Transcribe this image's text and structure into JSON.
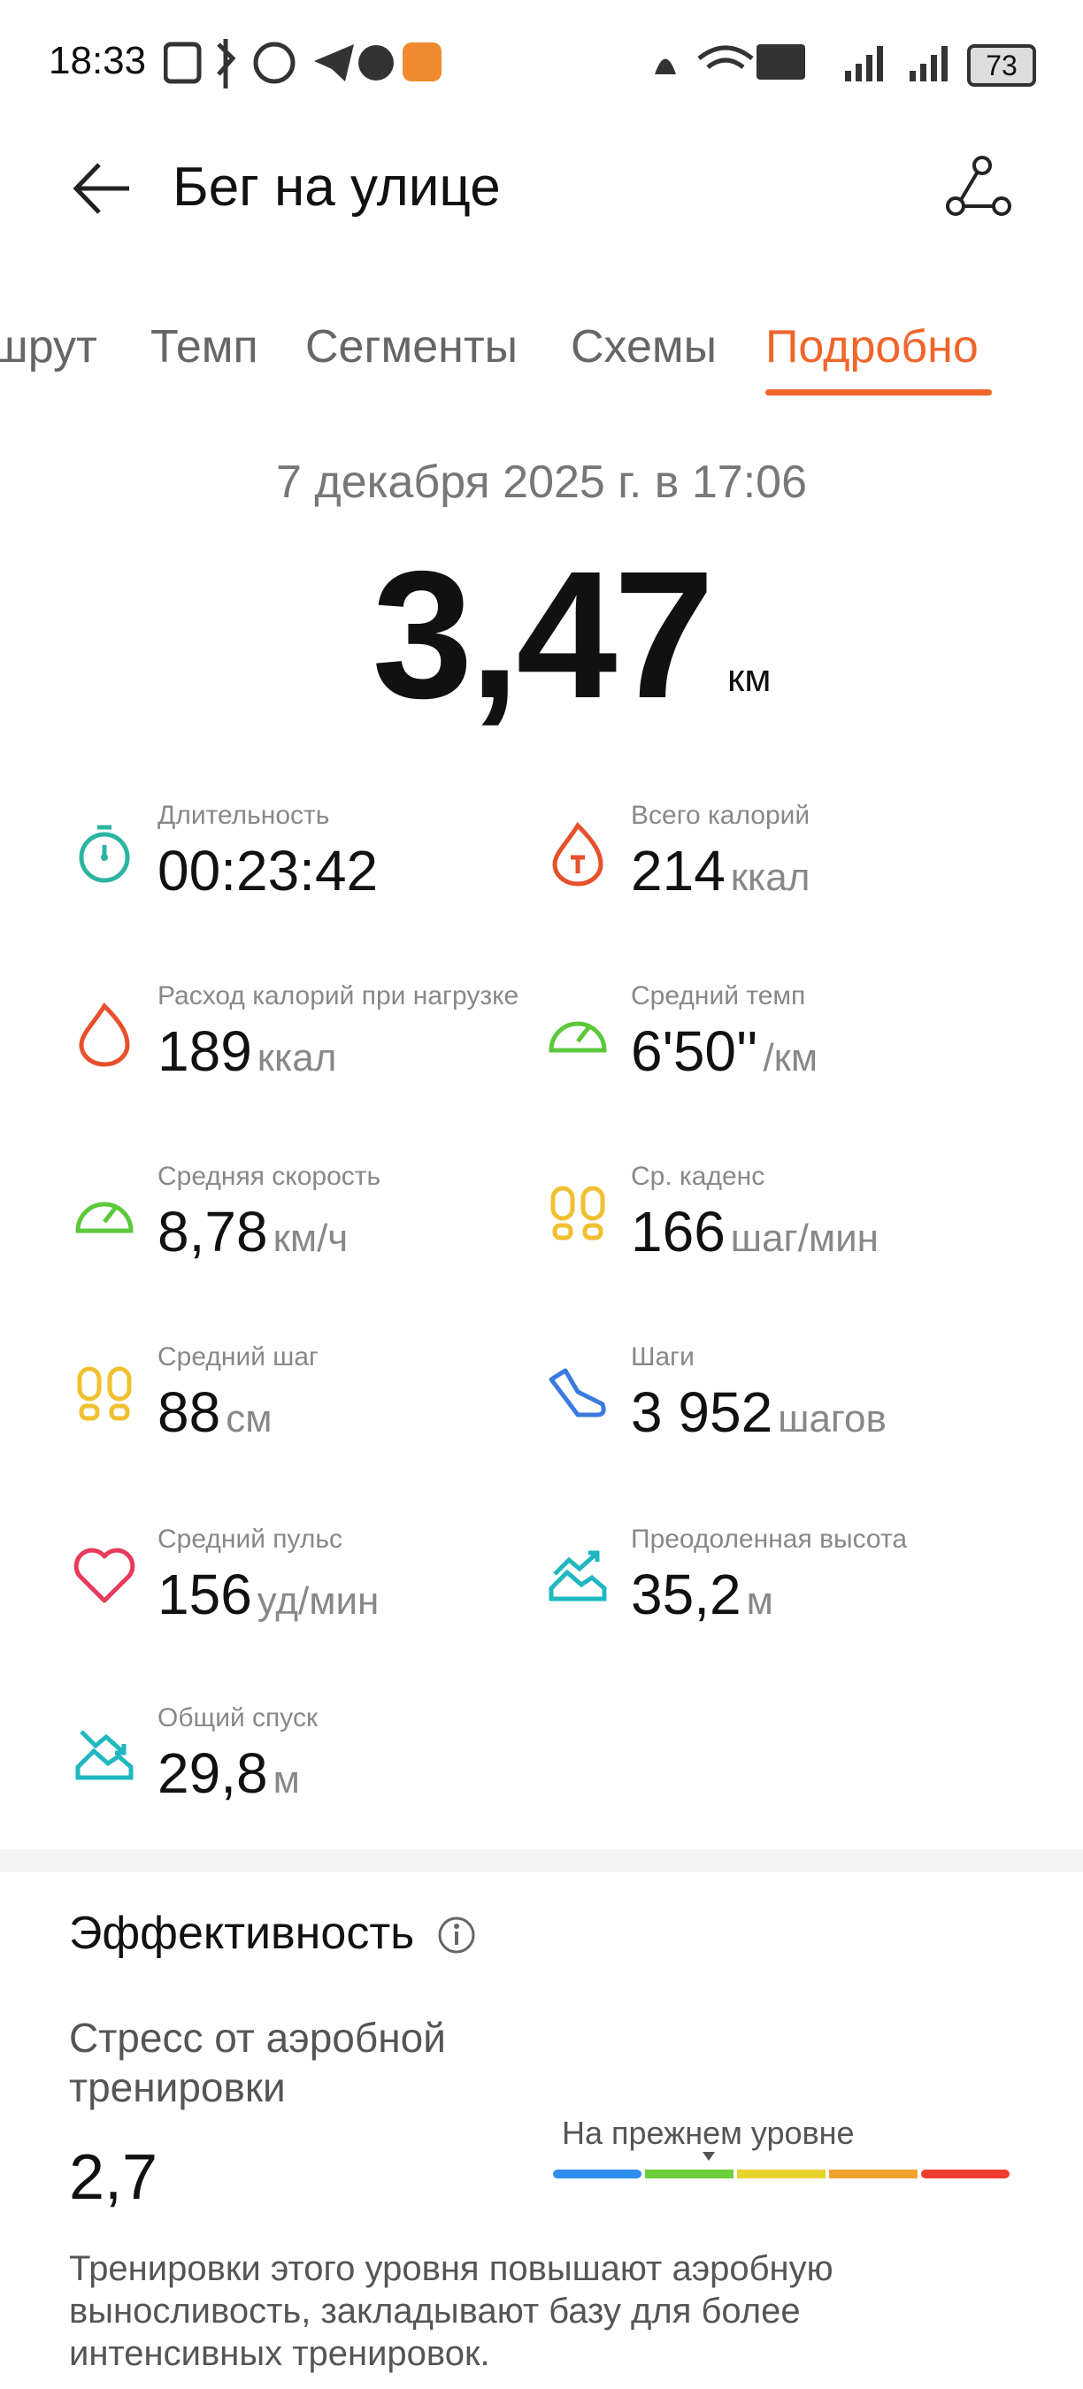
{
  "status_bar": {
    "time": "18:33",
    "battery": "73"
  },
  "header": {
    "title": "Бег на улице"
  },
  "tabs": {
    "items": [
      "шрут",
      "Темп",
      "Сегменты",
      "Схемы",
      "Подробно"
    ],
    "active": 4
  },
  "summary": {
    "date": "7 декабря 2025 г. в 17:06",
    "distance": "3,47",
    "unit": "км"
  },
  "metrics": [
    {
      "label": "Длительность",
      "value": "00:23:42"
    },
    {
      "label": "Всего калорий",
      "value": 214,
      "unit": "ккал"
    },
    {
      "label": "Расход калорий при нагрузке",
      "value": 189,
      "unit": "ккал"
    },
    {
      "label": "Средний темп",
      "value": "6'50''",
      "unit": "/км"
    },
    {
      "label": "Средняя скорость",
      "value": "8,78",
      "unit": "км/ч"
    },
    {
      "label": "Ср. каденс",
      "value": 166,
      "unit": "шаг/мин"
    },
    {
      "label": "Средний шаг",
      "value": 88,
      "unit": "см"
    },
    {
      "label": "Шаги",
      "value": "3 952",
      "unit": "шагов"
    },
    {
      "label": "Средний пульс",
      "value": 156,
      "unit": "уд/мин"
    },
    {
      "label": "Преодоленная высота",
      "value": "35,2",
      "unit": "м"
    },
    {
      "label": "Общий спуск",
      "value": "29,8",
      "unit": "м"
    }
  ],
  "effectiveness": {
    "title": "Эффективность",
    "subtitle": "Стресс от аэробной тренировки",
    "value": "2,7",
    "level": "На прежнем уровне",
    "description": "Тренировки этого уровня повышают аэробную выносливость, закладывают базу для более интенсивных тренировок."
  }
}
